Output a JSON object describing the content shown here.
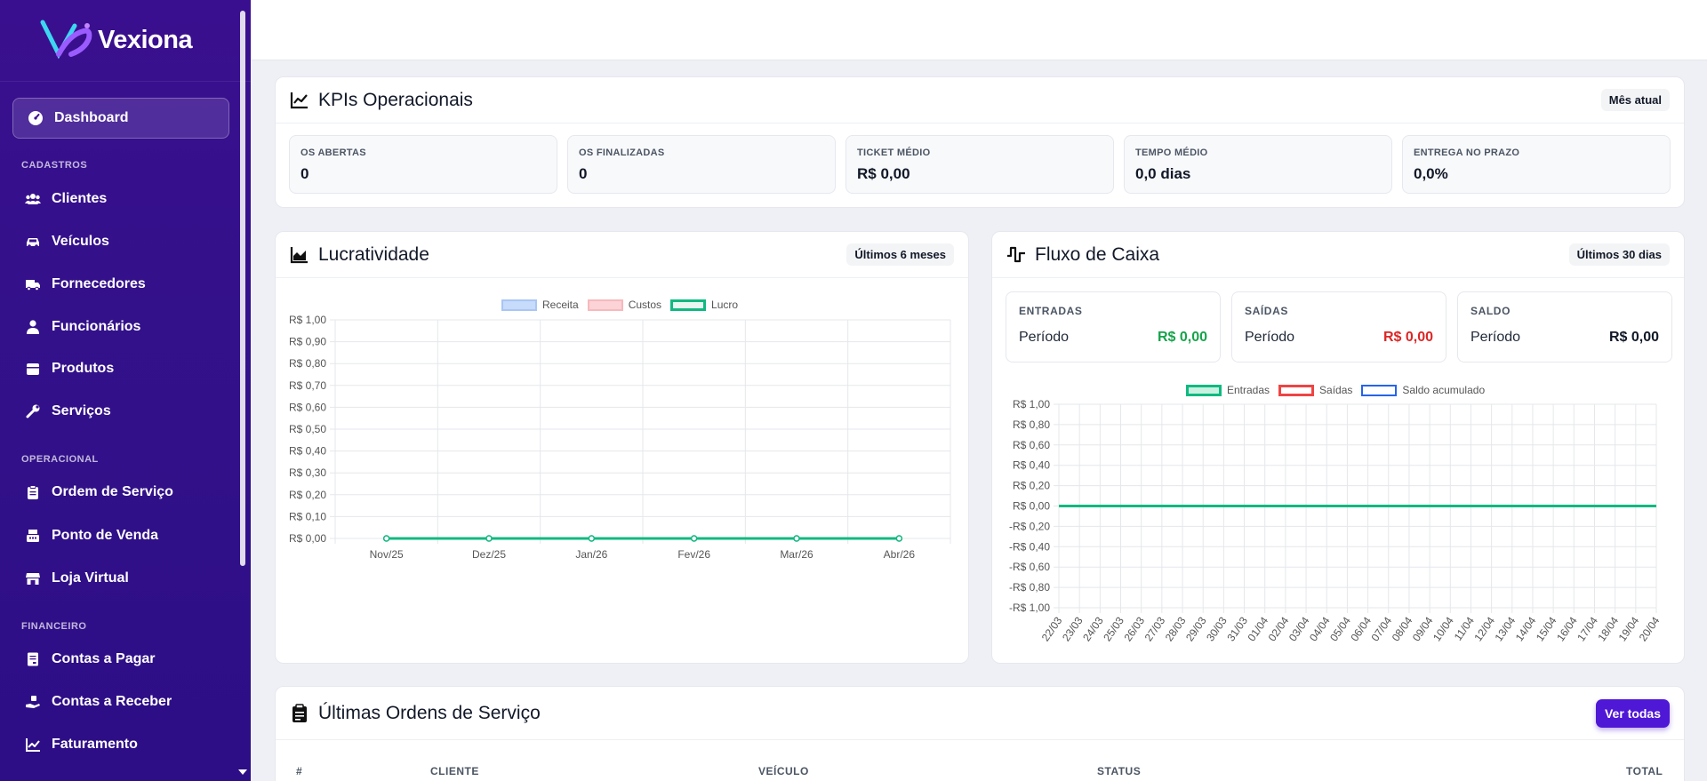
{
  "brand": {
    "name": "Vexiona"
  },
  "sidebar": {
    "active": {
      "label": "Dashboard",
      "icon": "gauge-icon"
    },
    "sections": [
      {
        "label": "CADASTROS",
        "items": [
          {
            "label": "Clientes",
            "icon": "users-icon"
          },
          {
            "label": "Veículos",
            "icon": "car-icon"
          },
          {
            "label": "Fornecedores",
            "icon": "truck-icon"
          },
          {
            "label": "Funcionários",
            "icon": "user-tie-icon"
          },
          {
            "label": "Produtos",
            "icon": "box-icon"
          },
          {
            "label": "Serviços",
            "icon": "wrench-icon"
          }
        ]
      },
      {
        "label": "OPERACIONAL",
        "items": [
          {
            "label": "Ordem de Serviço",
            "icon": "clipboard-icon"
          },
          {
            "label": "Ponto de Venda",
            "icon": "cash-register-icon"
          },
          {
            "label": "Loja Virtual",
            "icon": "store-icon"
          }
        ]
      },
      {
        "label": "FINANCEIRO",
        "items": [
          {
            "label": "Contas a Pagar",
            "icon": "invoice-icon"
          },
          {
            "label": "Contas a Receber",
            "icon": "hand-money-icon"
          },
          {
            "label": "Faturamento",
            "icon": "chart-line-icon"
          }
        ]
      }
    ]
  },
  "kpis": {
    "title": "KPIs Operacionais",
    "period": "Mês atual",
    "items": [
      {
        "label": "OS ABERTAS",
        "value": "0"
      },
      {
        "label": "OS FINALIZADAS",
        "value": "0"
      },
      {
        "label": "TICKET MÉDIO",
        "value": "R$ 0,00"
      },
      {
        "label": "TEMPO MÉDIO",
        "value": "0,0 dias"
      },
      {
        "label": "ENTREGA NO PRAZO",
        "value": "0,0%"
      }
    ]
  },
  "lucratividade": {
    "title": "Lucratividade",
    "period": "Últimos 6 meses",
    "chart_data": {
      "type": "line",
      "categories": [
        "Nov/25",
        "Dez/25",
        "Jan/26",
        "Fev/26",
        "Mar/26",
        "Abr/26"
      ],
      "series": [
        {
          "name": "Receita",
          "values": [
            0,
            0,
            0,
            0,
            0,
            0
          ]
        },
        {
          "name": "Custos",
          "values": [
            0,
            0,
            0,
            0,
            0,
            0
          ]
        },
        {
          "name": "Lucro",
          "values": [
            0,
            0,
            0,
            0,
            0,
            0
          ]
        }
      ],
      "y_ticks": [
        "R$ 1,00",
        "R$ 0,90",
        "R$ 0,80",
        "R$ 0,70",
        "R$ 0,60",
        "R$ 0,50",
        "R$ 0,40",
        "R$ 0,30",
        "R$ 0,20",
        "R$ 0,10",
        "R$ 0,00"
      ],
      "ylim": [
        0,
        1
      ],
      "legend_position": "top",
      "grid": true,
      "colors": {
        "Receita": "#a9c6f5",
        "Custos": "#f7b9bd",
        "Lucro": "#10b981"
      }
    }
  },
  "fluxo": {
    "title": "Fluxo de Caixa",
    "period": "Últimos 30 dias",
    "summary": [
      {
        "label": "ENTRADAS",
        "sub": "Período",
        "value": "R$ 0,00",
        "color": "#16a34a"
      },
      {
        "label": "SAÍDAS",
        "sub": "Período",
        "value": "R$ 0,00",
        "color": "#dc2626"
      },
      {
        "label": "SALDO",
        "sub": "Período",
        "value": "R$ 0,00",
        "color": "#111827"
      }
    ],
    "chart_data": {
      "type": "line",
      "categories": [
        "22/03",
        "23/03",
        "24/03",
        "25/03",
        "26/03",
        "27/03",
        "28/03",
        "29/03",
        "30/03",
        "31/03",
        "01/04",
        "02/04",
        "03/04",
        "04/04",
        "05/04",
        "06/04",
        "07/04",
        "08/04",
        "09/04",
        "10/04",
        "11/04",
        "12/04",
        "13/04",
        "14/04",
        "15/04",
        "16/04",
        "17/04",
        "18/04",
        "19/04",
        "20/04"
      ],
      "series": [
        {
          "name": "Entradas",
          "values": [
            0,
            0,
            0,
            0,
            0,
            0,
            0,
            0,
            0,
            0,
            0,
            0,
            0,
            0,
            0,
            0,
            0,
            0,
            0,
            0,
            0,
            0,
            0,
            0,
            0,
            0,
            0,
            0,
            0,
            0
          ]
        },
        {
          "name": "Saídas",
          "values": [
            0,
            0,
            0,
            0,
            0,
            0,
            0,
            0,
            0,
            0,
            0,
            0,
            0,
            0,
            0,
            0,
            0,
            0,
            0,
            0,
            0,
            0,
            0,
            0,
            0,
            0,
            0,
            0,
            0,
            0
          ]
        },
        {
          "name": "Saldo acumulado",
          "values": [
            0,
            0,
            0,
            0,
            0,
            0,
            0,
            0,
            0,
            0,
            0,
            0,
            0,
            0,
            0,
            0,
            0,
            0,
            0,
            0,
            0,
            0,
            0,
            0,
            0,
            0,
            0,
            0,
            0,
            0
          ]
        }
      ],
      "y_ticks": [
        "R$ 1,00",
        "R$ 0,80",
        "R$ 0,60",
        "R$ 0,40",
        "R$ 0,20",
        "R$ 0,00",
        "-R$ 0,20",
        "-R$ 0,40",
        "-R$ 0,60",
        "-R$ 0,80",
        "-R$ 1,00"
      ],
      "ylim": [
        -1,
        1
      ],
      "legend_position": "top",
      "grid": true,
      "colors": {
        "Entradas": "#10b981",
        "Saídas": "#ef4444",
        "Saldo acumulado": "#2563eb"
      }
    }
  },
  "ordens": {
    "title": "Últimas Ordens de Serviço",
    "button": "Ver todas",
    "columns": [
      "#",
      "CLIENTE",
      "VEÍCULO",
      "STATUS",
      "TOTAL"
    ]
  }
}
